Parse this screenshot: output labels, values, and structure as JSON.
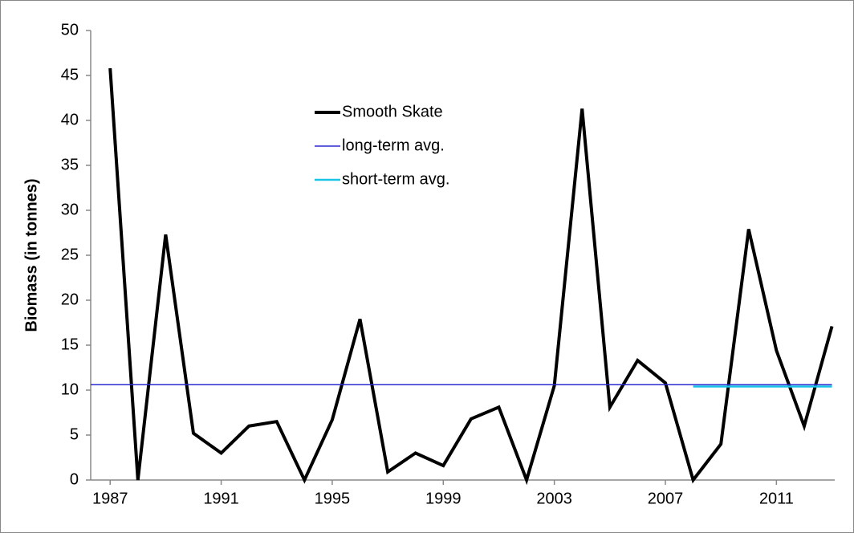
{
  "chart_data": {
    "type": "line",
    "y_label": "Biomass  (in tonnes)",
    "xlim": [
      1986.3,
      2013.1
    ],
    "xticks": [
      1987,
      1991,
      1995,
      1999,
      2003,
      2007,
      2011
    ],
    "ylim": [
      0,
      50
    ],
    "yticks": [
      0,
      5,
      10,
      15,
      20,
      25,
      30,
      35,
      40,
      45,
      50
    ],
    "grid": false,
    "legend": "upper center",
    "series": [
      {
        "name": "Smooth Skate",
        "color": "#000000",
        "x": [
          1987,
          1988,
          1989,
          1990,
          1991,
          1992,
          1993,
          1994,
          1995,
          1996,
          1997,
          1998,
          1999,
          2000,
          2001,
          2002,
          2003,
          2004,
          2005,
          2006,
          2007,
          2008,
          2009,
          2010,
          2011,
          2012,
          2013
        ],
        "values": [
          45.8,
          0,
          27.3,
          5.2,
          3.0,
          6.0,
          6.5,
          0,
          6.7,
          17.9,
          0.9,
          3.0,
          1.6,
          6.8,
          8.1,
          0,
          10.5,
          41.3,
          8.1,
          13.3,
          10.8,
          0,
          4.0,
          27.9,
          14.4,
          6.0,
          17.1
        ]
      },
      {
        "name": "long-term avg.",
        "color": "#2a2ad0",
        "x": [
          1986.3,
          2013
        ],
        "values": [
          10.6,
          10.6
        ]
      },
      {
        "name": "short-term avg.",
        "color": "#19c3e6",
        "x": [
          2008,
          2013
        ],
        "values": [
          10.4,
          10.4
        ]
      }
    ]
  }
}
